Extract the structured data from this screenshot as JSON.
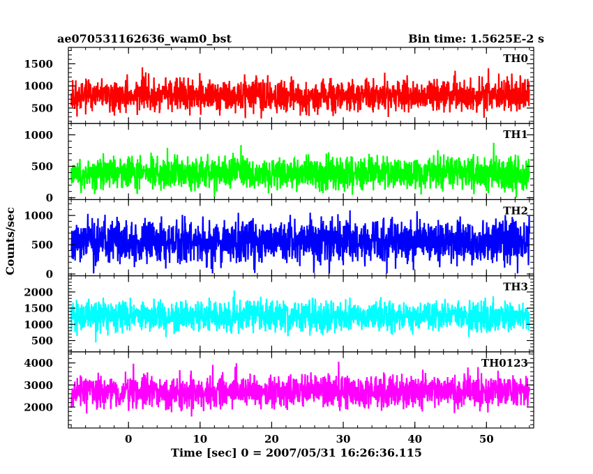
{
  "chart_data": {
    "type": "line",
    "title_left": "ae070531162636_wam0_bst",
    "title_right": "Bin time: 1.5625E-2 s",
    "xlabel": "Time [sec] 0 = 2007/05/31 16:26:36.115",
    "ylabel": "Counts/sec",
    "xlim": [
      -8.4,
      56.6
    ],
    "data_xrange": [
      -8.0,
      56.0
    ],
    "x_ticks": [
      0,
      10,
      20,
      30,
      40,
      50
    ],
    "x_minor_step": 2,
    "panels": [
      {
        "name": "TH0",
        "color": "#ff0000",
        "ylim": [
          150,
          1870
        ],
        "y_ticks": [
          500,
          1000,
          1500
        ],
        "y_minor_step": 100,
        "baseline": 780,
        "noise": 260,
        "min": 170,
        "max": 1850,
        "seed": 11
      },
      {
        "name": "TH1",
        "color": "#00ff00",
        "ylim": [
          -30,
          1180
        ],
        "y_ticks": [
          0,
          500,
          1000
        ],
        "y_minor_step": 100,
        "baseline": 400,
        "noise": 185,
        "min": 0,
        "max": 1175,
        "seed": 23
      },
      {
        "name": "TH2",
        "color": "#0000ff",
        "ylim": [
          -30,
          1270
        ],
        "y_ticks": [
          0,
          500,
          1000
        ],
        "y_minor_step": 100,
        "baseline": 560,
        "noise": 260,
        "min": 10,
        "max": 1265,
        "seed": 37
      },
      {
        "name": "TH3",
        "color": "#00ffff",
        "ylim": [
          150,
          2500
        ],
        "y_ticks": [
          500,
          1000,
          1500,
          2000
        ],
        "y_minor_step": 100,
        "baseline": 1250,
        "noise": 340,
        "min": 230,
        "max": 2450,
        "seed": 41
      },
      {
        "name": "TH0123",
        "color": "#ff00ff",
        "ylim": [
          1050,
          4500
        ],
        "y_ticks": [
          2000,
          3000,
          4000
        ],
        "y_minor_step": 200,
        "baseline": 2700,
        "noise": 520,
        "min": 1100,
        "max": 4450,
        "seed": 53
      }
    ]
  }
}
